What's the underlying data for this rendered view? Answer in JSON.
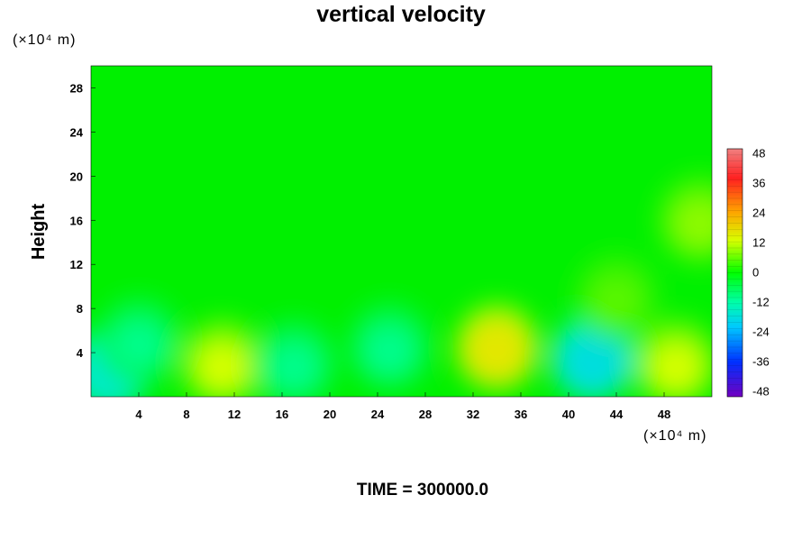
{
  "chart_data": {
    "type": "heatmap",
    "title": "vertical velocity",
    "ylabel": "Height",
    "x_unit": "(×10⁴ m)",
    "y_unit": "(×10⁴ m)",
    "xlim": [
      0,
      52
    ],
    "ylim": [
      0,
      30
    ],
    "x_ticks": [
      "4",
      "8",
      "12",
      "16",
      "20",
      "24",
      "28",
      "32",
      "36",
      "40",
      "44",
      "48"
    ],
    "y_ticks": [
      "4",
      "8",
      "12",
      "16",
      "20",
      "24",
      "28"
    ],
    "colorbar": {
      "range": [
        -50,
        50
      ],
      "ticks": [
        "48",
        "36",
        "24",
        "12",
        "0",
        "-12",
        "-24",
        "-36",
        "-48"
      ]
    },
    "background_value": 0,
    "features": [
      {
        "x": 1.5,
        "y": 2.5,
        "value": -16
      },
      {
        "x": 4.0,
        "y": 5.0,
        "value": -10
      },
      {
        "x": 11.0,
        "y": 3.0,
        "value": 12
      },
      {
        "x": 17.0,
        "y": 3.0,
        "value": -10
      },
      {
        "x": 25.0,
        "y": 4.5,
        "value": -10
      },
      {
        "x": 34.0,
        "y": 4.5,
        "value": 15
      },
      {
        "x": 42.0,
        "y": 3.5,
        "value": -18
      },
      {
        "x": 49.0,
        "y": 3.0,
        "value": 12
      },
      {
        "x": 44.0,
        "y": 9.0,
        "value": 5
      },
      {
        "x": 51.0,
        "y": 16.0,
        "value": 8
      }
    ]
  },
  "footer": {
    "label": "TIME = 300000.0"
  }
}
